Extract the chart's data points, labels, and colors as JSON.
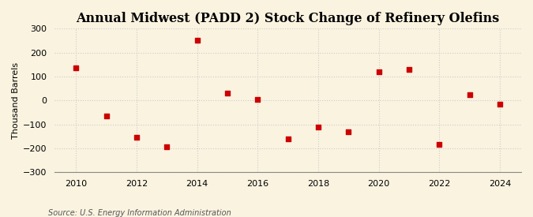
{
  "title": "Annual Midwest (PADD 2) Stock Change of Refinery Olefins",
  "ylabel": "Thousand Barrels",
  "source": "Source: U.S. Energy Information Administration",
  "years": [
    2010,
    2011,
    2012,
    2013,
    2014,
    2015,
    2016,
    2017,
    2018,
    2019,
    2020,
    2021,
    2022,
    2023,
    2024
  ],
  "values": [
    135,
    -65,
    -155,
    -195,
    250,
    30,
    5,
    -160,
    -110,
    -130,
    120,
    130,
    -185,
    25,
    -15
  ],
  "marker_color": "#cc0000",
  "marker": "s",
  "marker_size": 4,
  "background_color": "#faf3e0",
  "grid_color": "#cccccc",
  "ylim": [
    -300,
    300
  ],
  "yticks": [
    -300,
    -200,
    -100,
    0,
    100,
    200,
    300
  ],
  "xlim": [
    2009.3,
    2024.7
  ],
  "xticks": [
    2010,
    2012,
    2014,
    2016,
    2018,
    2020,
    2022,
    2024
  ],
  "title_fontsize": 11.5,
  "ylabel_fontsize": 8,
  "tick_fontsize": 8,
  "source_fontsize": 7
}
